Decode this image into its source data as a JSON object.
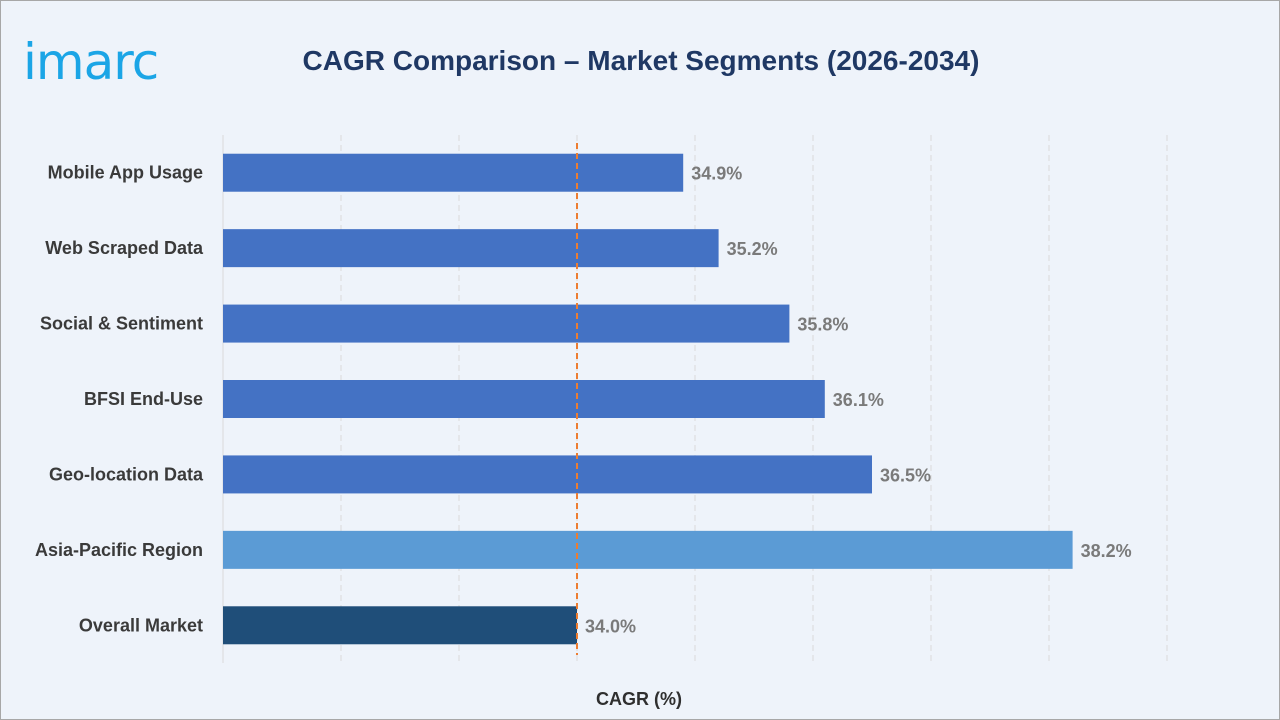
{
  "header": {
    "logo_text": "imarc",
    "title": "CAGR Comparison – Market Segments (2026-2034)"
  },
  "chart_data": {
    "type": "bar",
    "orientation": "horizontal",
    "title": "CAGR Comparison – Market Segments (2026-2034)",
    "xlabel": "CAGR (%)",
    "ylabel": "",
    "categories": [
      "Mobile App Usage",
      "Web Scraped Data",
      "Social & Sentiment",
      "BFSI End-Use",
      "Geo-location Data",
      "Asia-Pacific Region",
      "Overall Market"
    ],
    "values": [
      34.9,
      35.2,
      35.8,
      36.1,
      36.5,
      38.2,
      34.0
    ],
    "data_labels": [
      "34.9%",
      "35.2%",
      "35.8%",
      "36.1%",
      "36.5%",
      "38.2%",
      "34.0%"
    ],
    "bar_colors": [
      "#4472c4",
      "#4472c4",
      "#4472c4",
      "#4472c4",
      "#4472c4",
      "#5b9bd5",
      "#1f4e79"
    ],
    "xlim": [
      31.0,
      39.0
    ],
    "reference_line": {
      "value": 34.0,
      "color": "#ed7d31",
      "style": "dashed"
    },
    "grid": "vertical",
    "legend": "none"
  }
}
